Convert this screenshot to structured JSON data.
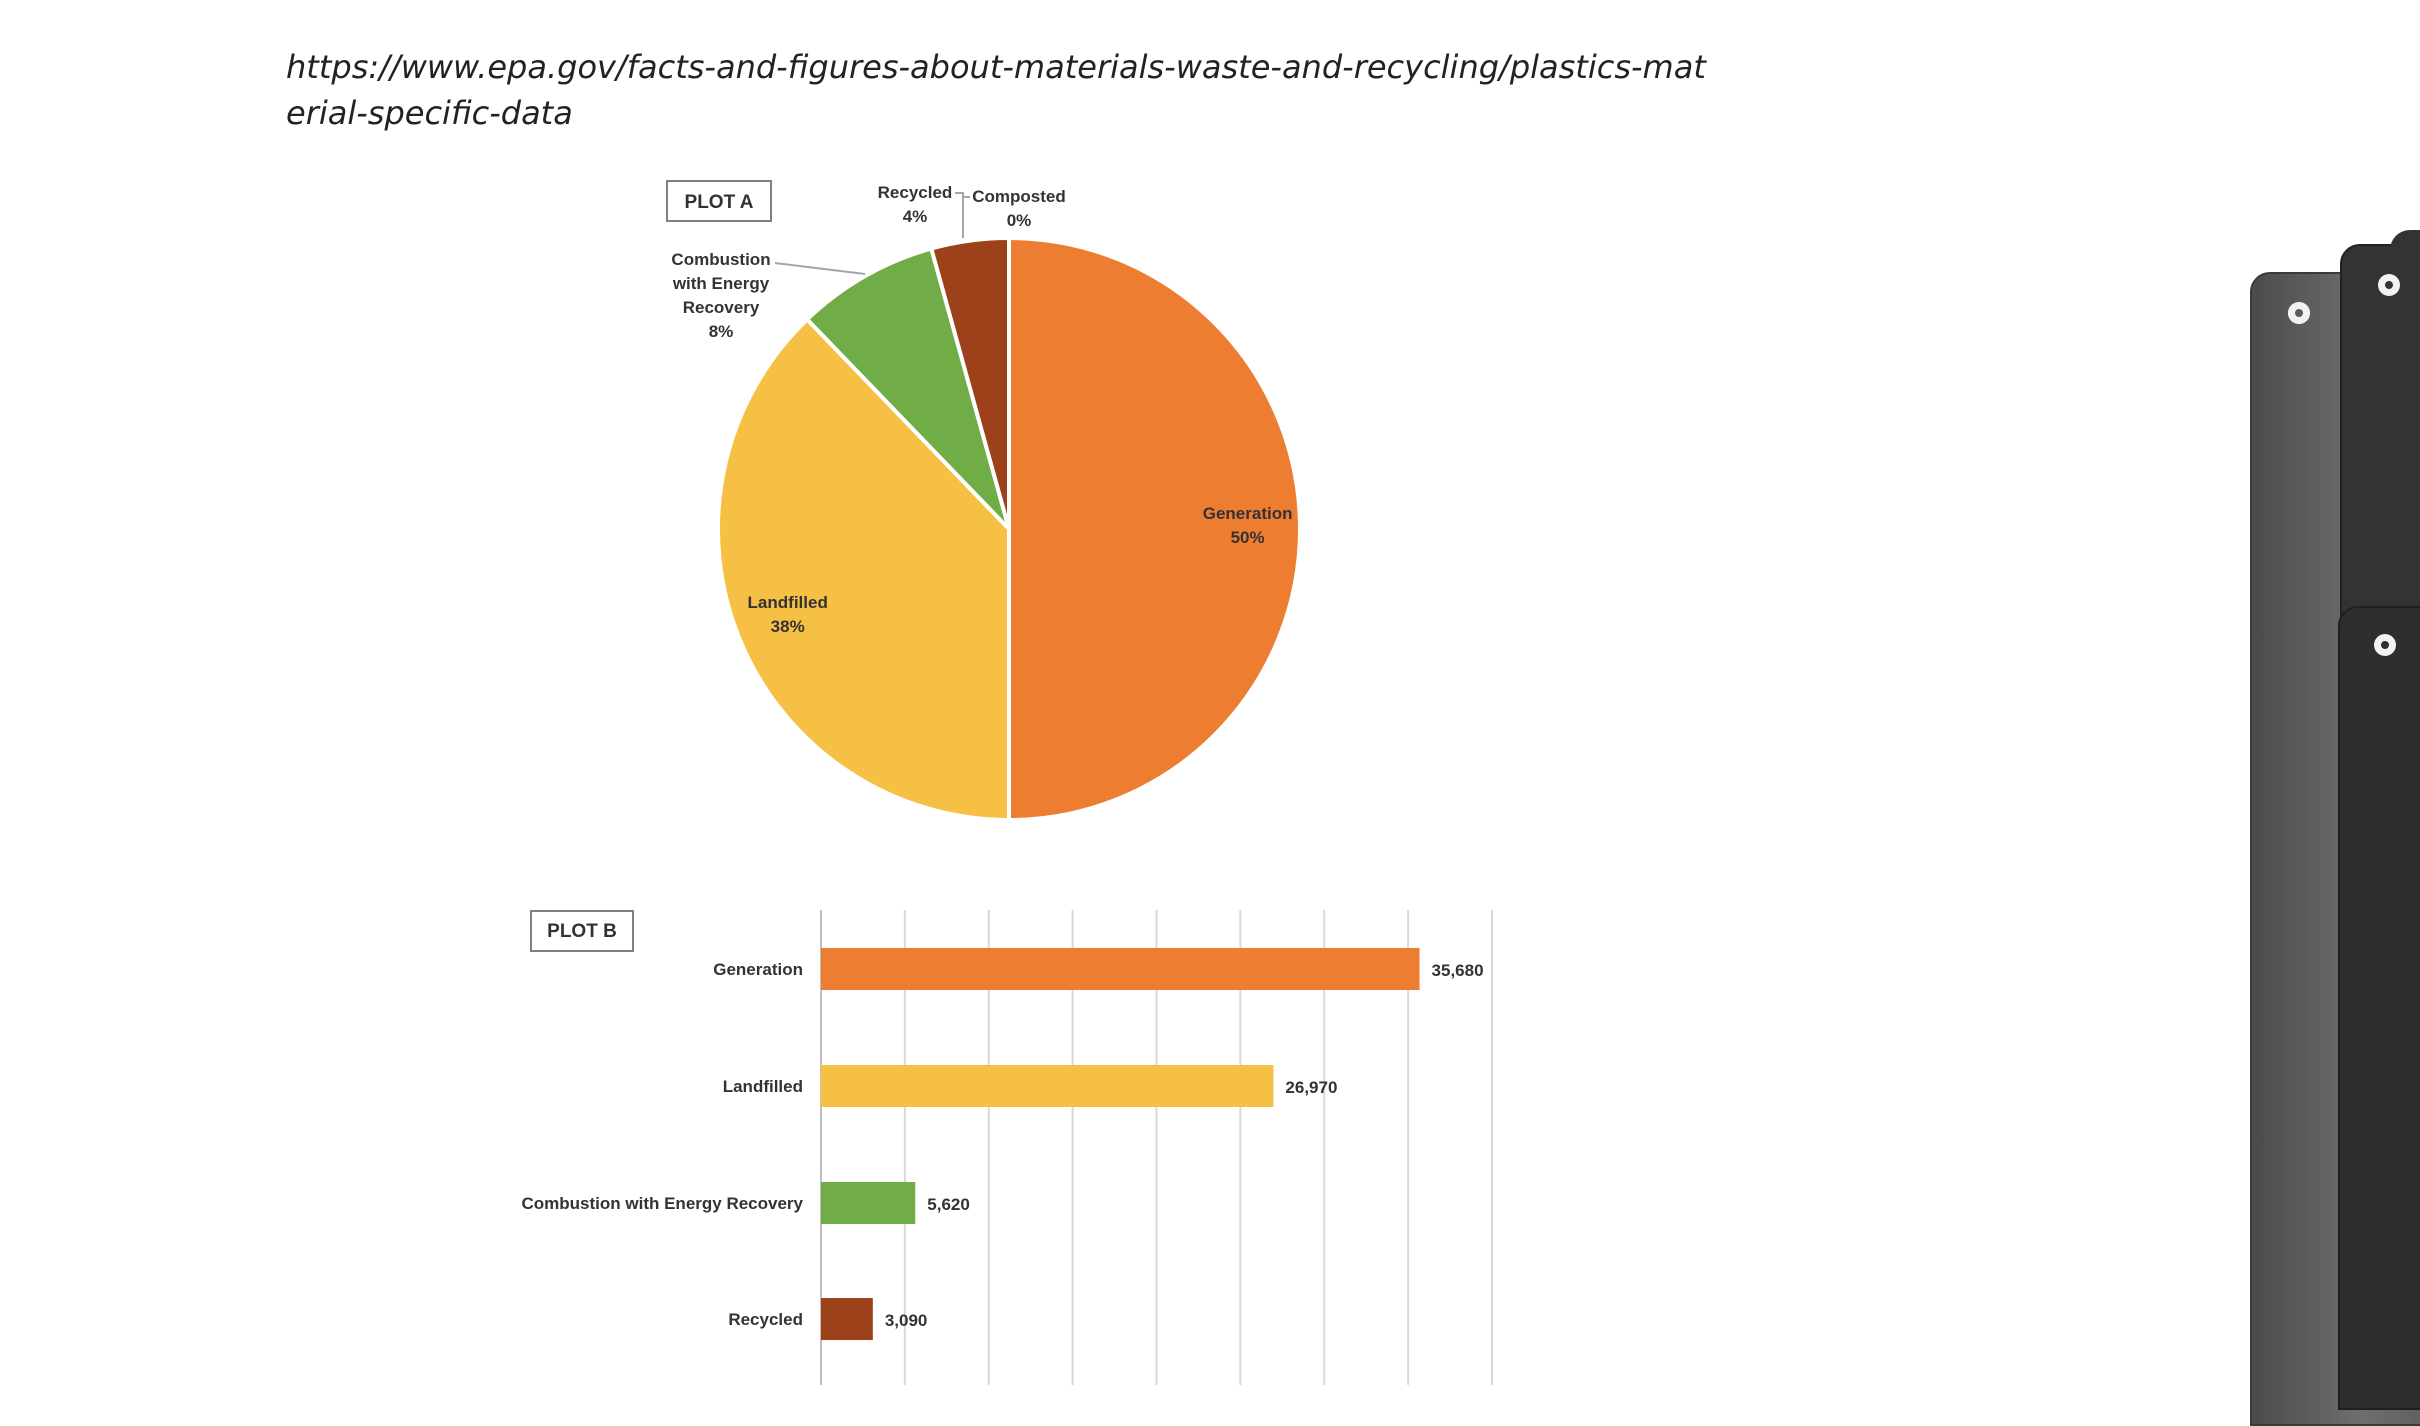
{
  "source_url": "https://www.epa.gov/facts-and-figures-about-materials-waste-and-recycling/plastics-material-specific-data",
  "chart_data": [
    {
      "type": "pie",
      "title": "PLOT A",
      "slices": [
        {
          "label": "Generation",
          "pct_label": "50%",
          "value": 50,
          "color": "#ED7D31"
        },
        {
          "label": "Landfilled",
          "pct_label": "38%",
          "value": 37.8,
          "color": "#F5C043"
        },
        {
          "label": "Combustion with Energy Recovery",
          "label_lines": [
            "Combustion",
            "with Energy",
            "Recovery"
          ],
          "pct_label": "8%",
          "value": 7.9,
          "color": "#70AD47"
        },
        {
          "label": "Recycled",
          "pct_label": "4%",
          "value": 4.3,
          "color": "#9C4119"
        },
        {
          "label": "Composted",
          "pct_label": "0%",
          "value": 0,
          "color": "#7F7F7F"
        }
      ]
    },
    {
      "type": "bar",
      "orientation": "horizontal",
      "title": "PLOT B",
      "categories": [
        "Generation",
        "Landfilled",
        "Combustion with Energy Recovery",
        "Recycled"
      ],
      "values": [
        35680,
        26970,
        5620,
        3090
      ],
      "value_labels": [
        "35,680",
        "26,970",
        "5,620",
        "3,090"
      ],
      "colors": [
        "#ED7D31",
        "#F5C043",
        "#70AD47",
        "#9C4119"
      ],
      "xlim": [
        0,
        40000
      ],
      "grid": true
    }
  ]
}
